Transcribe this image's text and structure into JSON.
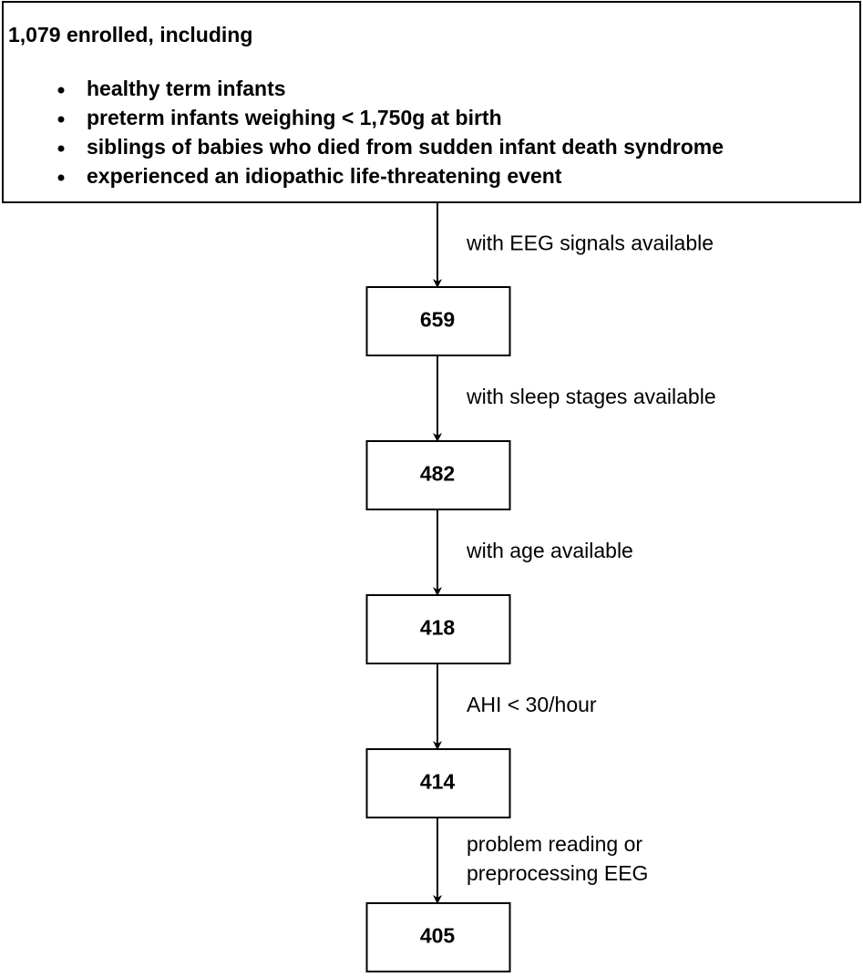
{
  "nodes": [
    {
      "label": "1,079 enrolled, including",
      "items": [
        "healthy term infants",
        "preterm infants weighing < 1,750g at birth",
        "siblings of babies who died from sudden infant death syndrome",
        "experienced an idiopathic life-threatening event"
      ]
    },
    {
      "label": "659"
    },
    {
      "label": "482"
    },
    {
      "label": "418"
    },
    {
      "label": "414"
    },
    {
      "label": "405"
    }
  ],
  "edges": [
    {
      "label": [
        "with EEG signals available"
      ]
    },
    {
      "label": [
        "with sleep stages available"
      ]
    },
    {
      "label": [
        "with age available"
      ]
    },
    {
      "label": [
        "AHI < 30/hour"
      ]
    },
    {
      "label": [
        "problem reading or",
        "preprocessing EEG"
      ]
    }
  ]
}
